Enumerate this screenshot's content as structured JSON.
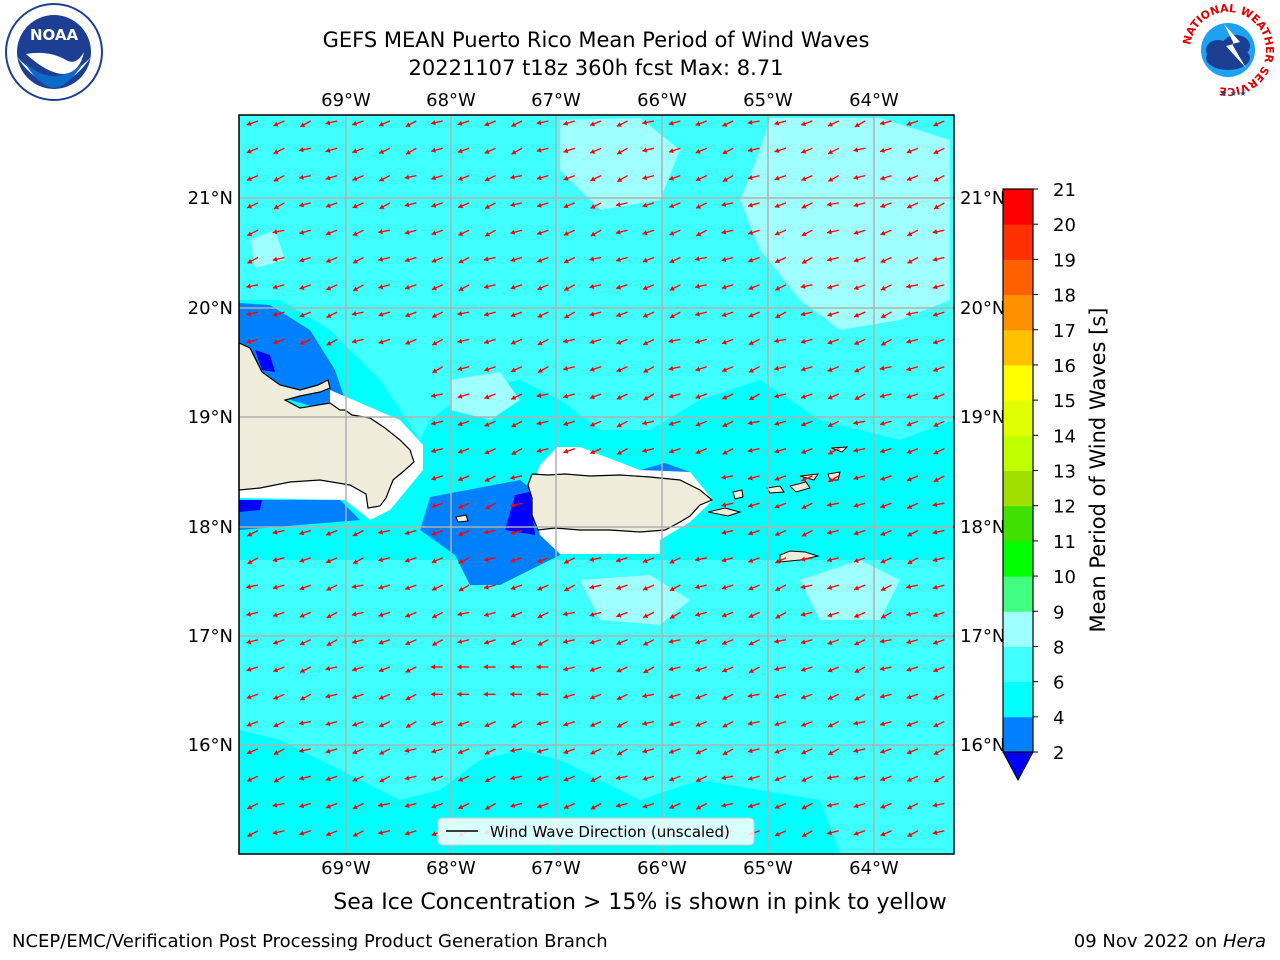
{
  "header": {
    "title_line1": "GEFS MEAN Puerto Rico Mean Period of Wind Waves",
    "title_line2": "20221107 t18z 360h fcst   Max: 8.71"
  },
  "logos": {
    "left": {
      "name": "noaa-logo",
      "text": "NOAA"
    },
    "right": {
      "name": "national-weather-service-logo",
      "text": "NATIONAL WEATHER SERVICE"
    }
  },
  "map": {
    "lon_labels": [
      "69°W",
      "68°W",
      "67°W",
      "66°W",
      "65°W",
      "64°W"
    ],
    "lat_labels": [
      "21°N",
      "20°N",
      "19°N",
      "18°N",
      "17°N",
      "16°N"
    ],
    "legend_label": "Wind Wave Direction (unscaled)",
    "ocean_color": "#00ffff",
    "land_color": "#efecdc",
    "arrow_color": "#ff0000"
  },
  "colorbar": {
    "label": "Mean Period of Wind Waves [s]",
    "ticks": [
      "2",
      "4",
      "6",
      "8",
      "9",
      "10",
      "11",
      "12",
      "13",
      "14",
      "15",
      "16",
      "17",
      "18",
      "19",
      "20",
      "21"
    ],
    "colors": [
      "#0000ff",
      "#0080ff",
      "#00ffff",
      "#40ffff",
      "#a0ffff",
      "#40ff80",
      "#00ff00",
      "#40e000",
      "#a0e000",
      "#c0ff00",
      "#e0ff00",
      "#ffff00",
      "#ffc000",
      "#ff9000",
      "#ff6000",
      "#ff3000",
      "#ff0000"
    ]
  },
  "subnote": "Sea Ice Concentration > 15% is shown in pink to yellow",
  "footer": {
    "left": "NCEP/EMC/Verification Post Processing Product Generation Branch",
    "right_prefix": "09 Nov 2022 on ",
    "right_host": "Hera"
  }
}
